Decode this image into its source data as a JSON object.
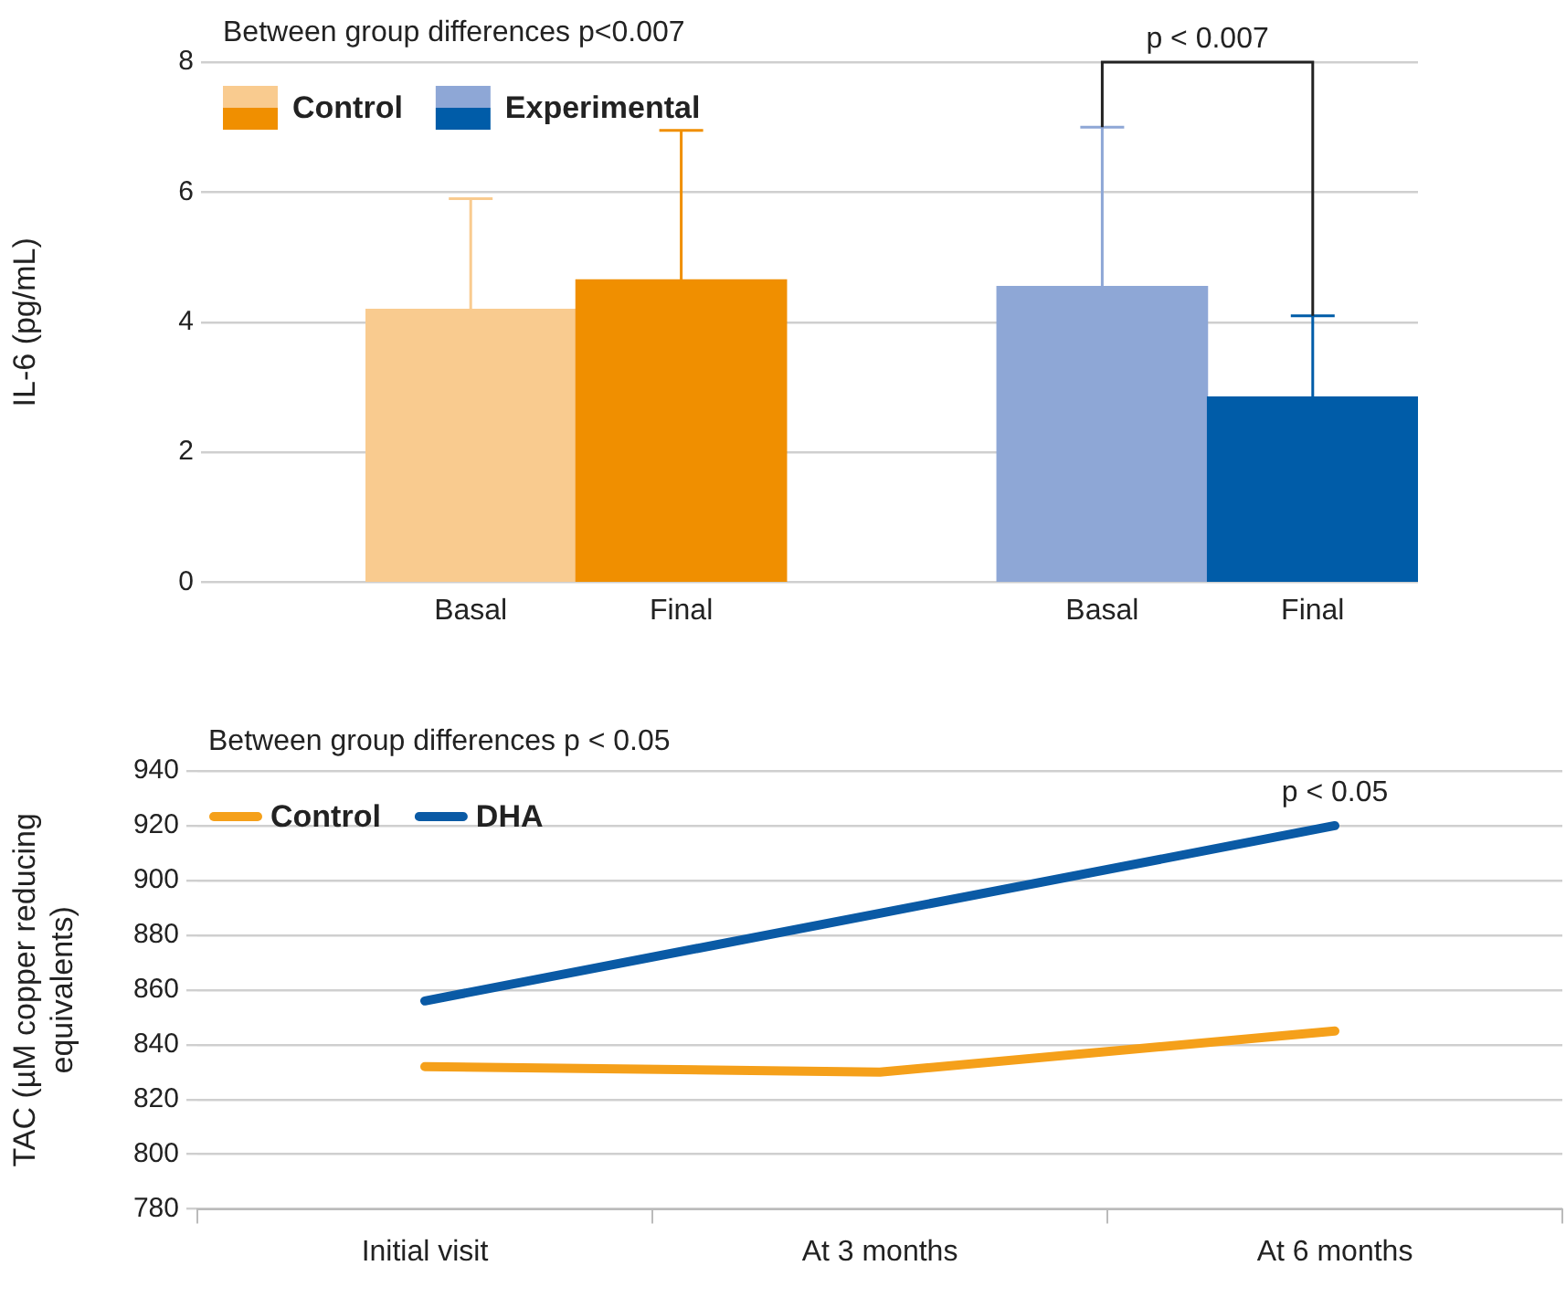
{
  "chart_data": [
    {
      "type": "bar",
      "subtitle": "Between group differences p<0.007",
      "ylabel": "IL-6 (pg/mL)",
      "categories": [
        "Basal",
        "Final",
        null,
        "Basal",
        "Final"
      ],
      "series": [
        {
          "name": "Control",
          "colors": [
            "#f9cb8f",
            "#f08f00",
            null,
            null,
            null
          ],
          "values": [
            4.2,
            4.65,
            null,
            null,
            null
          ],
          "errors": [
            [
              4.2,
              5.9
            ],
            [
              4.65,
              6.95
            ],
            null,
            null,
            null
          ]
        },
        {
          "name": "Experimental",
          "colors": [
            null,
            null,
            null,
            "#8ea7d6",
            "#005ca8"
          ],
          "values": [
            null,
            null,
            null,
            4.55,
            2.85
          ],
          "errors": [
            null,
            null,
            null,
            [
              4.55,
              7.0
            ],
            [
              2.85,
              4.1
            ]
          ]
        }
      ],
      "annotations": [
        "p < 0.007"
      ],
      "ylim": [
        0,
        8
      ],
      "yticks": [
        0,
        2,
        4,
        6,
        8
      ],
      "grid": "y",
      "legend": "top left"
    },
    {
      "type": "line",
      "subtitle": "Between group differences p < 0.05",
      "ylabel": "TAC (µM copper reducing equivalents)",
      "categories": [
        "Initial visit",
        "At 3 months",
        "At 6 months"
      ],
      "series": [
        {
          "name": "Control",
          "color": "#f5a01a",
          "values": [
            832,
            830,
            845
          ]
        },
        {
          "name": "DHA",
          "color": "#0a5aa5",
          "values": [
            856,
            888,
            920
          ]
        }
      ],
      "annotations": [
        {
          "text": "p < 0.05",
          "x": "At 6 months",
          "y": 920
        }
      ],
      "ylim": [
        780,
        940
      ],
      "yticks": [
        780,
        800,
        820,
        840,
        860,
        880,
        900,
        920,
        940
      ],
      "grid": "y",
      "legend": "top left",
      "marker": "none"
    }
  ]
}
